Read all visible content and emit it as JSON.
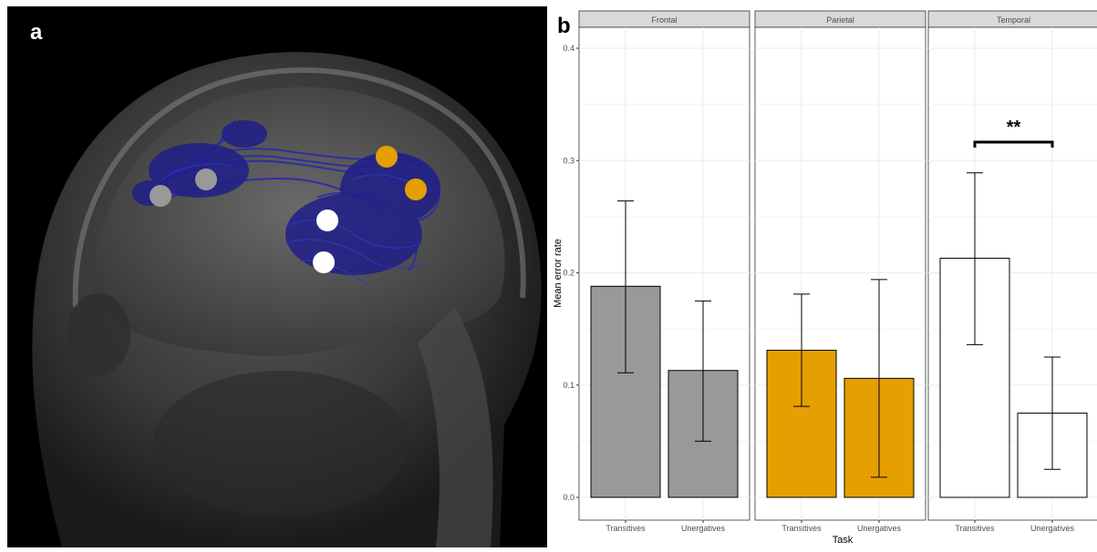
{
  "panel_a": {
    "letter": "a",
    "marker_colors": {
      "frontal": "#999999",
      "parietal": "#e69f00",
      "temporal": "#ffffff"
    }
  },
  "panel_b": {
    "letter": "b",
    "significance_label": "**"
  },
  "chart_data": {
    "type": "bar",
    "facets": [
      "Frontal",
      "Parietal",
      "Temporal"
    ],
    "categories": [
      "Transitives",
      "Unergatives"
    ],
    "xlabel": "Task",
    "ylabel": "Mean error rate",
    "ylim": [
      0,
      0.4
    ],
    "yticks": [
      "0.0",
      "0.1",
      "0.2",
      "0.3",
      "0.4"
    ],
    "facet_colors": {
      "Frontal": "#999999",
      "Parietal": "#e69f00",
      "Temporal": "#ffffff"
    },
    "grid": true,
    "legend": "none",
    "series": [
      {
        "facet": "Frontal",
        "values": [
          0.188,
          0.113
        ],
        "err_low": [
          0.111,
          0.05
        ],
        "err_high": [
          0.264,
          0.175
        ]
      },
      {
        "facet": "Parietal",
        "values": [
          0.131,
          0.106
        ],
        "err_low": [
          0.081,
          0.018
        ],
        "err_high": [
          0.181,
          0.194
        ]
      },
      {
        "facet": "Temporal",
        "values": [
          0.213,
          0.075
        ],
        "err_low": [
          0.136,
          0.025
        ],
        "err_high": [
          0.289,
          0.125
        ]
      }
    ],
    "annotations": [
      {
        "facet": "Temporal",
        "between": [
          "Transitives",
          "Unergatives"
        ],
        "text": "**"
      }
    ]
  }
}
